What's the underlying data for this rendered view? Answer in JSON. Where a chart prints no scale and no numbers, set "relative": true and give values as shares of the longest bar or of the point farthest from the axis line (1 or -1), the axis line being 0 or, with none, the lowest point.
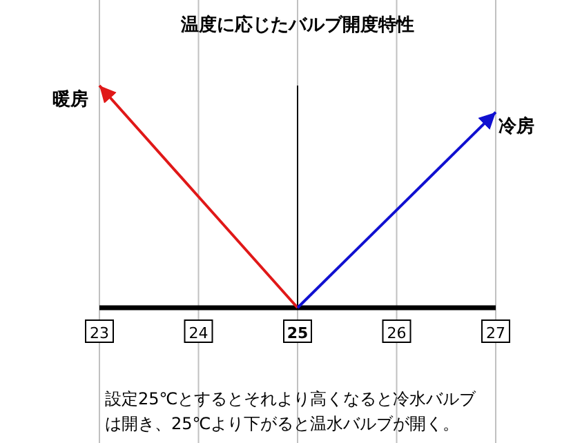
{
  "chart_data": {
    "type": "line",
    "title": "温度に応じたバルブ開度特性",
    "relative": true,
    "categories": [
      "23",
      "24",
      "25",
      "26",
      "27"
    ],
    "series": [
      {
        "color": "#e01818",
        "values": [
          1,
          0.5,
          0,
          null,
          null
        ]
      },
      {
        "color": "#1010d0",
        "values": [
          null,
          null,
          0,
          0.44,
          0.88
        ]
      }
    ],
    "ref_lines": [
      {
        "axis": "x",
        "value": "25",
        "color": "#000000"
      }
    ],
    "annotations": [
      {
        "text": "暖房",
        "x": "23",
        "y": 1
      },
      {
        "text": "冷房",
        "x": "27",
        "y": 0.88
      },
      "設定25℃とするとそれより高くなると冷水バルブは開き、25℃より下がると温水バルブが開く。"
    ],
    "grid": "x",
    "marker": "none",
    "line_style": "solid"
  }
}
